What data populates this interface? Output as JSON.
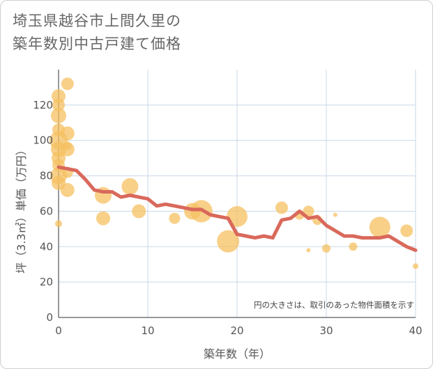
{
  "chart_data": {
    "type": "scatter",
    "title_line1": "埼玉県越谷市上間久里の",
    "title_line2": "築年数別中古戸建て価格",
    "xlabel": "築年数（年）",
    "ylabel": "坪（3.3㎡）単価（万円）",
    "xlim": [
      0,
      40
    ],
    "ylim": [
      0,
      140
    ],
    "xticks": [
      "0",
      "10",
      "20",
      "30",
      "40"
    ],
    "yticks": [
      "0",
      "20",
      "40",
      "60",
      "80",
      "100",
      "120"
    ],
    "annotation": "円の大きさは、取引のあった物件面積を示す",
    "colors": {
      "bubble": "#f5c060",
      "line": "#d9695b",
      "grid": "#c8d7e6"
    },
    "scatter": [
      {
        "x": 0,
        "y": 125,
        "s": 10
      },
      {
        "x": 0,
        "y": 120,
        "s": 9
      },
      {
        "x": 0,
        "y": 114,
        "s": 11
      },
      {
        "x": 0,
        "y": 106,
        "s": 9
      },
      {
        "x": 0,
        "y": 100,
        "s": 13
      },
      {
        "x": 0,
        "y": 95,
        "s": 11
      },
      {
        "x": 0,
        "y": 90,
        "s": 10
      },
      {
        "x": 0,
        "y": 86,
        "s": 9
      },
      {
        "x": 0,
        "y": 80,
        "s": 12
      },
      {
        "x": 0,
        "y": 76,
        "s": 10
      },
      {
        "x": 0,
        "y": 53,
        "s": 5
      },
      {
        "x": 1,
        "y": 132,
        "s": 9
      },
      {
        "x": 1,
        "y": 104,
        "s": 10
      },
      {
        "x": 1,
        "y": 95,
        "s": 10
      },
      {
        "x": 1,
        "y": 97,
        "s": 6
      },
      {
        "x": 1,
        "y": 82,
        "s": 8
      },
      {
        "x": 1,
        "y": 72,
        "s": 10
      },
      {
        "x": 5,
        "y": 69,
        "s": 12
      },
      {
        "x": 5,
        "y": 56,
        "s": 10
      },
      {
        "x": 8,
        "y": 74,
        "s": 12
      },
      {
        "x": 9,
        "y": 60,
        "s": 10
      },
      {
        "x": 13,
        "y": 56,
        "s": 8
      },
      {
        "x": 15,
        "y": 60,
        "s": 12
      },
      {
        "x": 16,
        "y": 60,
        "s": 16
      },
      {
        "x": 19,
        "y": 43,
        "s": 16
      },
      {
        "x": 20,
        "y": 57,
        "s": 15
      },
      {
        "x": 25,
        "y": 62,
        "s": 9
      },
      {
        "x": 27,
        "y": 58,
        "s": 7
      },
      {
        "x": 28,
        "y": 60,
        "s": 8
      },
      {
        "x": 28,
        "y": 38,
        "s": 3
      },
      {
        "x": 29,
        "y": 55,
        "s": 7
      },
      {
        "x": 30,
        "y": 39,
        "s": 6
      },
      {
        "x": 31,
        "y": 58,
        "s": 3
      },
      {
        "x": 33,
        "y": 40,
        "s": 6
      },
      {
        "x": 36,
        "y": 51,
        "s": 15
      },
      {
        "x": 39,
        "y": 49,
        "s": 9
      },
      {
        "x": 40,
        "y": 29,
        "s": 4
      }
    ],
    "line": {
      "x": [
        0,
        1,
        2,
        3,
        4,
        5,
        6,
        7,
        8,
        9,
        10,
        11,
        12,
        13,
        14,
        15,
        16,
        17,
        18,
        19,
        20,
        21,
        22,
        23,
        24,
        25,
        26,
        27,
        28,
        29,
        30,
        31,
        32,
        33,
        34,
        35,
        36,
        37,
        38,
        39,
        40
      ],
      "y": [
        85,
        84,
        83,
        78,
        72,
        71,
        71,
        68,
        69,
        68,
        67,
        63,
        64,
        63,
        62,
        61,
        61,
        58,
        57,
        56,
        47,
        46,
        45,
        46,
        45,
        55,
        56,
        60,
        56,
        57,
        52,
        49,
        46,
        46,
        45,
        45,
        45,
        46,
        43,
        40,
        38
      ]
    }
  }
}
